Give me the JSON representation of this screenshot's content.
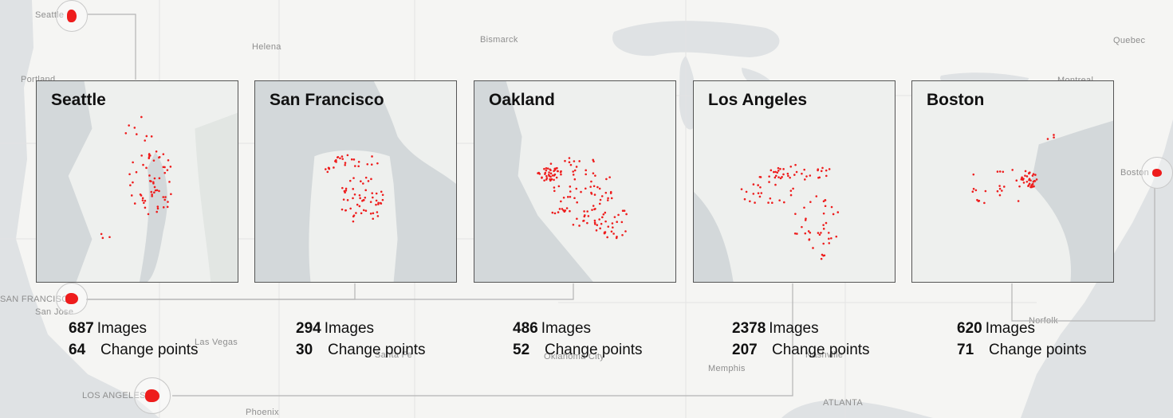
{
  "basemap_labels": [
    {
      "name": "Seattle"
    },
    {
      "name": "Helena"
    },
    {
      "name": "Bismarck"
    },
    {
      "name": "Quebec"
    },
    {
      "name": "Portland"
    },
    {
      "name": "Montreal"
    },
    {
      "name": "Boston"
    },
    {
      "name": "SAN FRANCISCO"
    },
    {
      "name": "San Jose"
    },
    {
      "name": "Las Vegas"
    },
    {
      "name": "Santa Fe"
    },
    {
      "name": "Oklahoma City"
    },
    {
      "name": "Nashville"
    },
    {
      "name": "Memphis"
    },
    {
      "name": "ATLANTA"
    },
    {
      "name": "LOS ANGELES"
    },
    {
      "name": "Phoenix"
    },
    {
      "name": "Norfolk"
    }
  ],
  "marker_color": "#ee1c1c",
  "panels": [
    {
      "title": "Seattle",
      "images": "687",
      "images_label": "Images",
      "change_points": "64",
      "change_label": "Change points"
    },
    {
      "title": "San Francisco",
      "images": "294",
      "images_label": "Images",
      "change_points": "30",
      "change_label": "Change points"
    },
    {
      "title": "Oakland",
      "images": "486",
      "images_label": "Images",
      "change_points": "52",
      "change_label": "Change points"
    },
    {
      "title": "Los Angeles",
      "images": "2378",
      "images_label": "Images",
      "change_points": "207",
      "change_label": "Change points"
    },
    {
      "title": "Boston",
      "images": "620",
      "images_label": "Images",
      "change_points": "71",
      "change_label": "Change points"
    }
  ]
}
